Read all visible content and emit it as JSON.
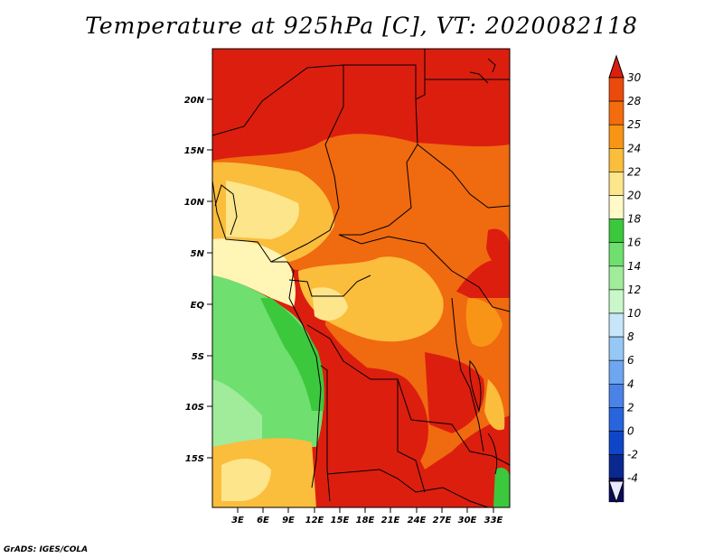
{
  "map": {
    "title": "Temperature at 925hPa [C], VT: 2020082118",
    "lat_labels": [
      "20N",
      "15N",
      "10N",
      "5N",
      "EQ",
      "5S",
      "10S",
      "15S"
    ],
    "lon_labels": [
      "3E",
      "6E",
      "9E",
      "12E",
      "15E",
      "18E",
      "21E",
      "24E",
      "27E",
      "30E",
      "33E"
    ],
    "credit": "GrADS: IGES/COLA"
  },
  "colorbar": {
    "labels": [
      "30",
      "28",
      "25",
      "24",
      "22",
      "20",
      "18",
      "16",
      "14",
      "12",
      "10",
      "8",
      "6",
      "4",
      "2",
      "0",
      "-2",
      "-4"
    ],
    "colors": [
      "#dc1e0f",
      "#ea4b0c",
      "#f56c0f",
      "#f99516",
      "#fbbd3c",
      "#fde58b",
      "#fffac8",
      "#3cc83c",
      "#6fdf6f",
      "#a0ec9a",
      "#c9f7c9",
      "#c8e6fa",
      "#96c8f5",
      "#6ea6ef",
      "#4b82e8",
      "#2864dc",
      "#0f46c8",
      "#0a2890",
      "#0a0a5a",
      "#e8e8ff"
    ]
  },
  "colors": {
    "hot": "#dc1e0f",
    "warm": "#f06a0f",
    "mild": "#fbbd3c",
    "cool_yellow": "#fff5b4",
    "green": "#3cc83c",
    "light_green": "#a0ec9a"
  }
}
